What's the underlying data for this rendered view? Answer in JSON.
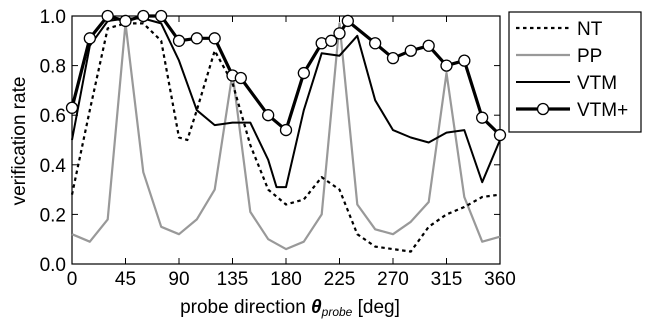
{
  "chart_data": {
    "type": "line",
    "xlabel": {
      "main": "probe direction ",
      "symbol": "θ",
      "subscript": "probe",
      "unit": " [deg]"
    },
    "ylabel": "verification rate",
    "xlim": [
      0,
      360
    ],
    "ylim": [
      0.0,
      1.0
    ],
    "x_ticks": [
      "0",
      "45",
      "90",
      "135",
      "180",
      "225",
      "270",
      "315",
      "360"
    ],
    "y_ticks": [
      "0.0",
      "0.2",
      "0.4",
      "0.6",
      "0.8",
      "1.0"
    ],
    "grid": false,
    "legend_position": "right",
    "series": [
      {
        "name": "NT",
        "style": "dotted",
        "color": "#000000",
        "x": [
          0,
          15,
          30,
          45,
          60,
          75,
          90,
          97,
          105,
          120,
          135,
          150,
          165,
          180,
          195,
          210,
          225,
          240,
          255,
          270,
          285,
          300,
          315,
          330,
          345,
          360
        ],
        "y": [
          0.28,
          0.62,
          0.95,
          0.97,
          0.97,
          0.9,
          0.51,
          0.5,
          0.62,
          0.86,
          0.73,
          0.48,
          0.3,
          0.24,
          0.26,
          0.35,
          0.3,
          0.12,
          0.07,
          0.06,
          0.05,
          0.15,
          0.2,
          0.23,
          0.27,
          0.28
        ]
      },
      {
        "name": "PP",
        "style": "solid",
        "color": "#999999",
        "x": [
          0,
          15,
          30,
          45,
          60,
          75,
          90,
          105,
          120,
          135,
          150,
          165,
          180,
          195,
          210,
          225,
          240,
          255,
          270,
          285,
          300,
          315,
          330,
          345,
          360
        ],
        "y": [
          0.12,
          0.09,
          0.18,
          0.97,
          0.37,
          0.15,
          0.12,
          0.18,
          0.3,
          0.77,
          0.21,
          0.1,
          0.06,
          0.09,
          0.2,
          0.97,
          0.24,
          0.14,
          0.12,
          0.17,
          0.25,
          0.77,
          0.27,
          0.09,
          0.11
        ]
      },
      {
        "name": "VTM",
        "style": "solid",
        "color": "#000000",
        "x": [
          0,
          15,
          30,
          45,
          60,
          75,
          90,
          105,
          120,
          135,
          150,
          165,
          172,
          180,
          195,
          210,
          225,
          240,
          255,
          270,
          285,
          300,
          315,
          330,
          345,
          360
        ],
        "y": [
          0.5,
          0.88,
          0.98,
          0.99,
          0.99,
          0.97,
          0.82,
          0.62,
          0.56,
          0.57,
          0.57,
          0.42,
          0.31,
          0.31,
          0.62,
          0.85,
          0.84,
          0.92,
          0.66,
          0.54,
          0.51,
          0.49,
          0.53,
          0.54,
          0.33,
          0.5
        ]
      },
      {
        "name": "VTM+",
        "style": "solid-thick-circle-markers",
        "color": "#000000",
        "x": [
          0,
          15,
          30,
          45,
          60,
          75,
          90,
          105,
          120,
          135,
          142,
          165,
          180,
          195,
          210,
          218,
          225,
          232,
          255,
          270,
          285,
          300,
          315,
          330,
          345,
          360
        ],
        "y": [
          0.63,
          0.91,
          1.0,
          0.98,
          1.0,
          1.0,
          0.9,
          0.91,
          0.91,
          0.76,
          0.75,
          0.6,
          0.54,
          0.77,
          0.89,
          0.9,
          0.93,
          0.98,
          0.89,
          0.83,
          0.86,
          0.88,
          0.8,
          0.82,
          0.59,
          0.52
        ]
      }
    ]
  }
}
